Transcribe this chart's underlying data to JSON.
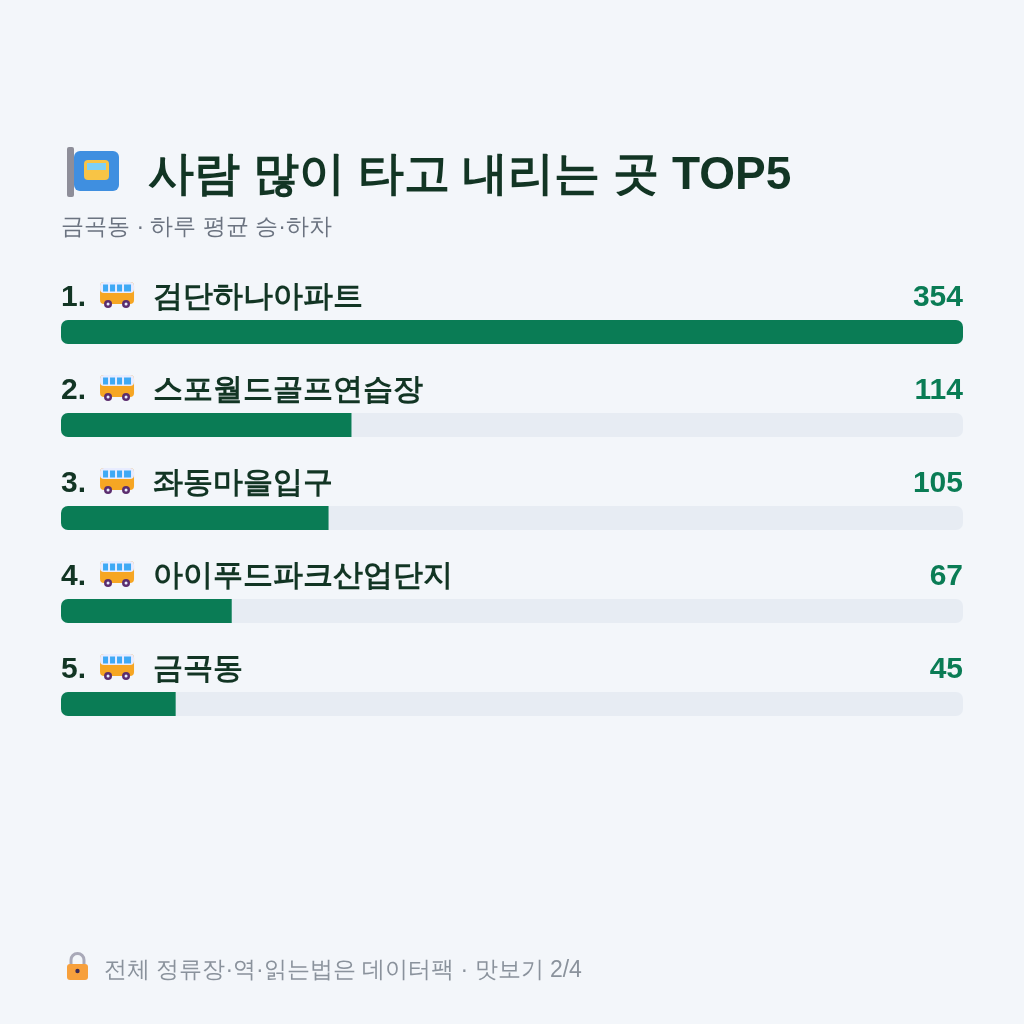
{
  "chart_data": {
    "type": "bar",
    "orientation": "horizontal",
    "title": "사람 많이 타고 내리는 곳 TOP5",
    "subtitle": "금곡동 · 하루 평균 승·하차",
    "categories": [
      "1. 검단하나아파트",
      "2. 스포월드골프연습장",
      "3. 좌동마을입구",
      "4. 아이푸드파크산업단지",
      "5. 금곡동"
    ],
    "values": [
      354,
      114,
      105,
      67,
      45
    ],
    "color": "#0a7c55",
    "data_labels": true,
    "annotations": [
      "전체 정류장·역·읽는법은 데이터팩 · 맛보기 2/4"
    ]
  }
}
